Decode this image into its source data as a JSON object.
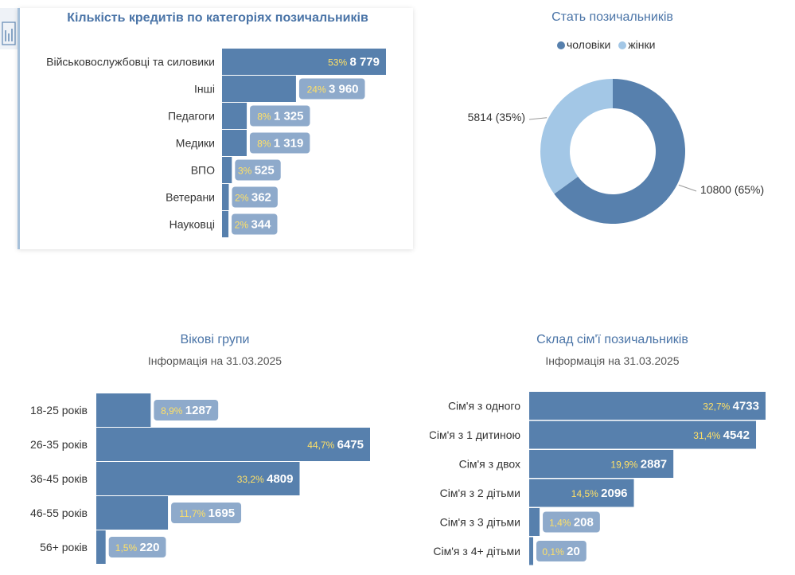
{
  "chart_data": [
    {
      "id": "categories",
      "type": "bar",
      "orientation": "horizontal",
      "title": "Кількість кредитів по категоріях позичальників",
      "categories": [
        "Військовослужбовці та силовики",
        "Інші",
        "Педагоги",
        "Медики",
        "ВПО",
        "Ветерани",
        "Науковці"
      ],
      "values": [
        8779,
        3960,
        1325,
        1319,
        525,
        362,
        344
      ],
      "value_labels": [
        "8 779",
        "3 960",
        "1 325",
        "1 319",
        "525",
        "362",
        "344"
      ],
      "percent_labels": [
        "53%",
        "24%",
        "8%",
        "8%",
        "3%",
        "2%",
        "2%"
      ]
    },
    {
      "id": "gender",
      "type": "pie",
      "donut": true,
      "title": "Стать позичальників",
      "labels": [
        "чоловіки",
        "жінки"
      ],
      "values": [
        10800,
        5814
      ],
      "slice_labels": [
        "10800 (65%)",
        "5814 (35%)"
      ],
      "colors": [
        "#5780ad",
        "#a3c7e6"
      ],
      "legend_position": "top"
    },
    {
      "id": "age",
      "type": "bar",
      "orientation": "horizontal",
      "title": "Вікові групи",
      "subtitle": "Інформація на 31.03.2025",
      "categories": [
        "18-25 років",
        "26-35 років",
        "36-45 років",
        "46-55 років",
        "56+ років"
      ],
      "values": [
        1287,
        6475,
        4809,
        1695,
        220
      ],
      "value_labels": [
        "1287",
        "6475",
        "4809",
        "1695",
        "220"
      ],
      "percent_labels": [
        "8,9%",
        "44,7%",
        "33,2%",
        "11,7%",
        "1,5%"
      ]
    },
    {
      "id": "family",
      "type": "bar",
      "orientation": "horizontal",
      "title": "Склад сім'ї позичальників",
      "subtitle": "Інформація на 31.03.2025",
      "categories": [
        "Сім'я з одного",
        "Сім'я з 1 дитиною",
        "Сім'я з двох",
        "Сім'я з 2 дітьми",
        "Сім'я з 3 дітьми",
        "Сім'я з 4+ дітьми"
      ],
      "values": [
        4733,
        4542,
        2887,
        2096,
        208,
        20
      ],
      "value_labels": [
        "4733",
        "4542",
        "2887",
        "2096",
        "208",
        "20"
      ],
      "percent_labels": [
        "32,7%",
        "31,4%",
        "19,9%",
        "14,5%",
        "1,4%",
        "0,1%"
      ]
    }
  ],
  "colors": {
    "bar": "#5780ad",
    "label_box": "#8eaacb",
    "percent_text": "#ffe066",
    "value_text": "#ffffff",
    "title": "#4a74a7",
    "category_text": "#333333"
  }
}
